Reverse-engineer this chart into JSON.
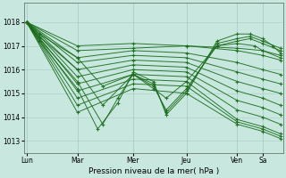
{
  "bg_color": "#c8e8df",
  "grid_color": "#a8ccca",
  "line_color": "#1a6b1a",
  "xlabel": "Pression niveau de la mer( hPa )",
  "ylim": [
    1012.5,
    1018.8
  ],
  "yticks": [
    1013,
    1014,
    1015,
    1016,
    1017,
    1018
  ],
  "day_labels": [
    "Lun",
    "Mar",
    "Mer",
    "Jeu",
    "Ven",
    "Sa"
  ],
  "day_x": [
    0,
    0.2,
    0.42,
    0.63,
    0.83,
    0.93
  ],
  "lines": [
    {
      "x": [
        0.0,
        0.2,
        0.42,
        0.63,
        0.83,
        0.93,
        1.0
      ],
      "y": [
        1018.0,
        1017.0,
        1017.1,
        1017.0,
        1016.9,
        1016.8,
        1016.6
      ]
    },
    {
      "x": [
        0.0,
        0.2,
        0.42,
        0.63,
        0.83,
        0.93,
        1.0
      ],
      "y": [
        1018.0,
        1016.8,
        1016.9,
        1017.0,
        1016.8,
        1016.6,
        1016.4
      ]
    },
    {
      "x": [
        0.0,
        0.2,
        0.42,
        0.63,
        0.83,
        0.93,
        1.0
      ],
      "y": [
        1018.0,
        1016.5,
        1016.8,
        1016.7,
        1016.3,
        1016.0,
        1015.8
      ]
    },
    {
      "x": [
        0.0,
        0.2,
        0.42,
        0.63,
        0.83,
        0.93,
        1.0
      ],
      "y": [
        1018.0,
        1016.3,
        1016.6,
        1016.5,
        1015.9,
        1015.6,
        1015.4
      ]
    },
    {
      "x": [
        0.0,
        0.2,
        0.42,
        0.63,
        0.83,
        0.93,
        1.0
      ],
      "y": [
        1018.0,
        1016.0,
        1016.4,
        1016.3,
        1015.5,
        1015.2,
        1015.0
      ]
    },
    {
      "x": [
        0.0,
        0.2,
        0.42,
        0.63,
        0.83,
        0.93,
        1.0
      ],
      "y": [
        1018.0,
        1015.7,
        1016.2,
        1016.1,
        1015.1,
        1014.8,
        1014.5
      ]
    },
    {
      "x": [
        0.0,
        0.2,
        0.42,
        0.63,
        0.83,
        0.93,
        1.0
      ],
      "y": [
        1018.0,
        1015.4,
        1016.0,
        1015.9,
        1014.7,
        1014.4,
        1014.1
      ]
    },
    {
      "x": [
        0.0,
        0.2,
        0.42,
        0.63,
        0.83,
        0.93,
        1.0
      ],
      "y": [
        1018.0,
        1015.1,
        1015.8,
        1015.7,
        1014.3,
        1014.0,
        1013.7
      ]
    },
    {
      "x": [
        0.0,
        0.2,
        0.42,
        0.63,
        0.83,
        0.93,
        1.0
      ],
      "y": [
        1018.0,
        1014.8,
        1015.6,
        1015.5,
        1013.9,
        1013.6,
        1013.3
      ]
    },
    {
      "x": [
        0.0,
        0.2,
        0.42,
        0.63,
        0.83,
        0.93,
        1.0
      ],
      "y": [
        1018.0,
        1014.5,
        1015.4,
        1015.3,
        1013.8,
        1013.5,
        1013.2
      ]
    },
    {
      "x": [
        0.0,
        0.2,
        0.42,
        0.63,
        0.83,
        0.93,
        1.0
      ],
      "y": [
        1018.0,
        1014.2,
        1015.2,
        1015.0,
        1013.7,
        1013.4,
        1013.1
      ]
    },
    {
      "x": [
        0.0,
        0.05,
        0.2,
        0.3,
        0.42,
        0.5,
        0.55,
        0.63,
        0.75,
        0.83,
        0.9,
        0.93,
        1.0
      ],
      "y": [
        1018.0,
        1017.5,
        1016.5,
        1015.3,
        1015.8,
        1015.2,
        1014.8,
        1015.5,
        1017.0,
        1017.1,
        1017.0,
        1016.8,
        1016.5
      ]
    },
    {
      "x": [
        0.0,
        0.05,
        0.2,
        0.3,
        0.42,
        0.5,
        0.55,
        0.63,
        0.75,
        0.83,
        0.88,
        0.93,
        1.0
      ],
      "y": [
        1018.0,
        1017.4,
        1016.0,
        1014.5,
        1015.8,
        1015.3,
        1014.3,
        1015.2,
        1017.0,
        1017.2,
        1017.3,
        1017.1,
        1016.8
      ]
    },
    {
      "x": [
        0.0,
        0.05,
        0.2,
        0.3,
        0.36,
        0.42,
        0.5,
        0.55,
        0.63,
        0.75,
        0.83,
        0.88,
        0.93,
        1.0
      ],
      "y": [
        1018.0,
        1017.3,
        1015.5,
        1013.7,
        1014.8,
        1015.8,
        1015.4,
        1014.2,
        1015.1,
        1017.1,
        1017.3,
        1017.4,
        1017.2,
        1016.9
      ]
    },
    {
      "x": [
        0.0,
        0.05,
        0.2,
        0.28,
        0.36,
        0.42,
        0.5,
        0.55,
        0.63,
        0.75,
        0.83,
        0.88,
        0.93,
        0.97,
        1.0
      ],
      "y": [
        1018.0,
        1017.2,
        1015.2,
        1013.5,
        1014.6,
        1015.9,
        1015.5,
        1014.1,
        1015.0,
        1017.2,
        1017.5,
        1017.5,
        1017.3,
        1017.0,
        1016.7
      ]
    }
  ]
}
